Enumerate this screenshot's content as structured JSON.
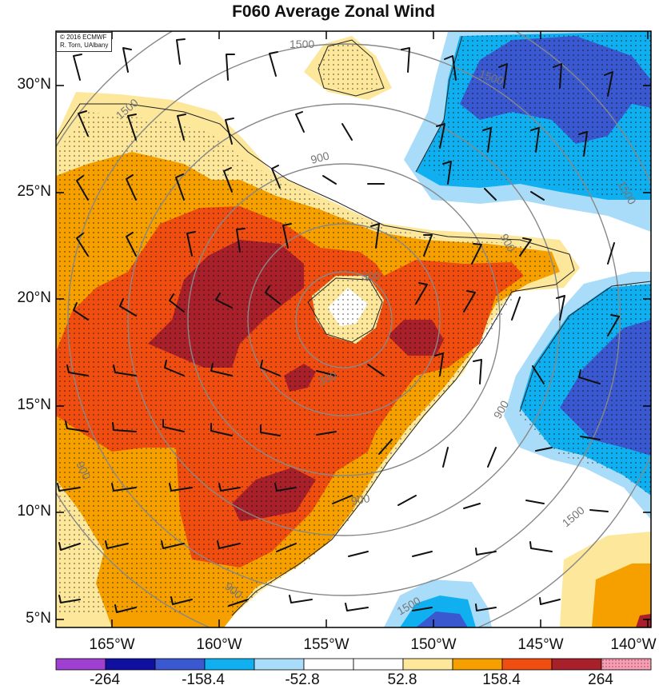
{
  "title": "F060 Average Zonal Wind",
  "credit": {
    "line1": "© 2016 ECMWF",
    "line2": "R. Torn, UAlbany"
  },
  "lat_labels": [
    "30°N",
    "25°N",
    "20°N",
    "15°N",
    "10°N",
    "5°N"
  ],
  "lon_labels": [
    "165°W",
    "160°W",
    "155°W",
    "150°W",
    "145°W",
    "140°W"
  ],
  "colorbar": {
    "colors": [
      "#a040d0",
      "#1010a0",
      "#3a58d0",
      "#10b0f0",
      "#a8dcf8",
      "#ffffff",
      "#ffffff",
      "#fce79a",
      "#f6a000",
      "#f04d10",
      "#a8202a",
      "#f4a0b4"
    ],
    "labels": [
      "-264",
      "-158.4",
      "-52.8",
      "52.8",
      "158.4",
      "264"
    ]
  },
  "contour_labels": [
    "1500",
    "1500",
    "1500",
    "1500",
    "1500",
    "1500",
    "900",
    "900",
    "900",
    "900",
    "900",
    "900",
    "300",
    "300"
  ]
}
